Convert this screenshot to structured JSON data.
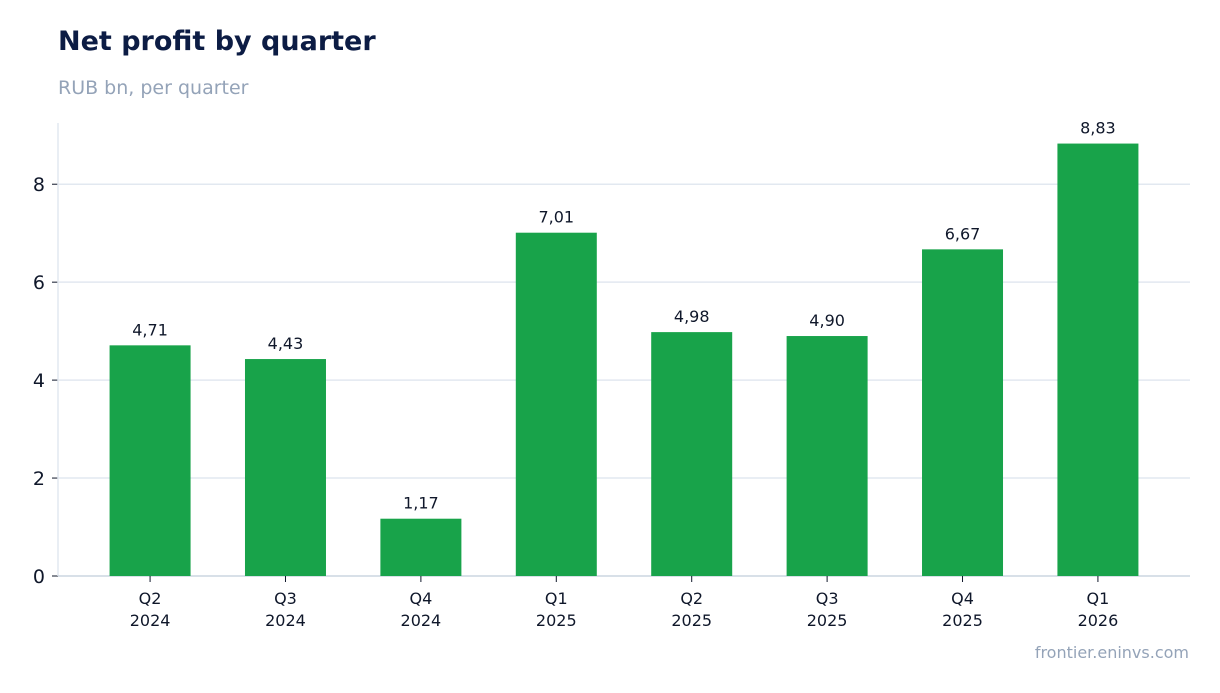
{
  "title": "Net profit by quarter",
  "subtitle": "RUB bn, per quarter",
  "source": "frontier.eninvs.com",
  "colors": {
    "bar": "#18a34a",
    "grid": "#e2e8f0",
    "axis": "#cbd5e1",
    "text": "#0f172a",
    "muted": "#94a3b8"
  },
  "chart_data": {
    "type": "bar",
    "categories": [
      [
        "Q2",
        "2024"
      ],
      [
        "Q3",
        "2024"
      ],
      [
        "Q4",
        "2024"
      ],
      [
        "Q1",
        "2025"
      ],
      [
        "Q2",
        "2025"
      ],
      [
        "Q3",
        "2025"
      ],
      [
        "Q4",
        "2025"
      ],
      [
        "Q1",
        "2026"
      ]
    ],
    "values": [
      4.71,
      4.43,
      1.17,
      7.01,
      4.98,
      4.9,
      6.67,
      8.83
    ],
    "value_labels": [
      "4,71",
      "4,43",
      "1,17",
      "7,01",
      "4,98",
      "4,90",
      "6,67",
      "8,83"
    ],
    "yticks": [
      0,
      2,
      4,
      6,
      8
    ],
    "ylim": [
      0,
      9.25
    ],
    "grid": true
  }
}
